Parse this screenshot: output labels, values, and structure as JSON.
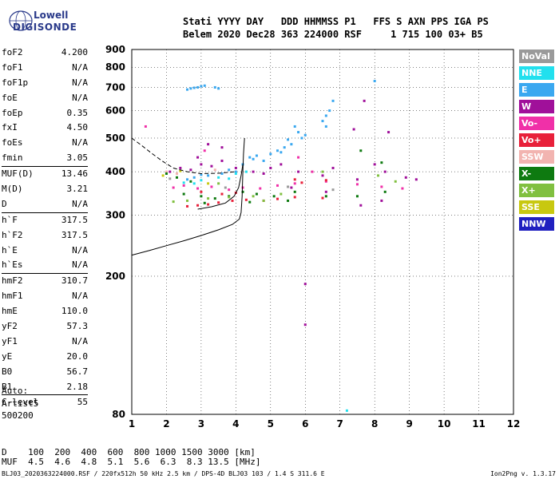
{
  "logo": {
    "line1": "Lowell",
    "line2": "DIGISONDE"
  },
  "header": {
    "line1": "Stati YYYY DAY   DDD HHMMSS P1   FFS S AXN PPS IGA PS",
    "line2": "Belem 2020 Dec28 363 224000 RSF     1 715 100 03+ B5"
  },
  "params": [
    {
      "n": "foF2",
      "v": "4.200"
    },
    {
      "n": "foF1",
      "v": "N/A"
    },
    {
      "n": "foF1p",
      "v": "N/A"
    },
    {
      "n": "foE",
      "v": "N/A"
    },
    {
      "n": "foEp",
      "v": "0.35"
    },
    {
      "n": "fxI",
      "v": "4.50"
    },
    {
      "n": "foEs",
      "v": "N/A"
    },
    {
      "n": "fmin",
      "v": "3.05",
      "sep": true
    },
    {
      "n": "MUF(D)",
      "v": "13.46"
    },
    {
      "n": "M(D)",
      "v": "3.21"
    },
    {
      "n": "D",
      "v": "N/A",
      "sep": true
    },
    {
      "n": "h`F",
      "v": "317.5"
    },
    {
      "n": "h`F2",
      "v": "317.5"
    },
    {
      "n": "h`E",
      "v": "N/A"
    },
    {
      "n": "h`Es",
      "v": "N/A",
      "sep": true
    },
    {
      "n": "hmF2",
      "v": "310.7"
    },
    {
      "n": "hmF1",
      "v": "N/A"
    },
    {
      "n": "hmE",
      "v": "110.0"
    },
    {
      "n": "yF2",
      "v": "57.3"
    },
    {
      "n": "yF1",
      "v": "N/A"
    },
    {
      "n": "yE",
      "v": "20.0"
    },
    {
      "n": "B0",
      "v": "56.7"
    },
    {
      "n": "B1",
      "v": "2.18",
      "sep": true
    },
    {
      "n": "C-level",
      "v": "55",
      "sep": true
    }
  ],
  "auto": {
    "l1": "Auto:",
    "l2": "Artist5",
    "l3": "500200"
  },
  "dmuf": {
    "d": "D    100  200  400  600  800 1000 1500 3000 [km]",
    "muf": "MUF  4.5  4.6  4.8  5.1  5.6  6.3  8.3 13.5 [MHz]"
  },
  "footer": {
    "left": "BLJ03_2020363224000.RSF / 220fx512h 50 kHz 2.5 km / DPS-4D BLJ03 103 / 1.4 S 311.6 E",
    "right": "Ion2Png v. 1.3.17"
  },
  "legend": [
    {
      "label": "NoVal",
      "color": "#9a9a9a"
    },
    {
      "label": "NNE",
      "color": "#22e0ee"
    },
    {
      "label": "E",
      "color": "#3aa8f0"
    },
    {
      "label": "W",
      "color": "#a0109a"
    },
    {
      "label": "Vo-",
      "color": "#f030a8"
    },
    {
      "label": "Vo+",
      "color": "#e8203a"
    },
    {
      "label": "SSW",
      "color": "#f2b4b0"
    },
    {
      "label": "X-",
      "color": "#0e7a10"
    },
    {
      "label": "X+",
      "color": "#80c040"
    },
    {
      "label": "SSE",
      "color": "#c8c810"
    },
    {
      "label": "NNW",
      "color": "#2020c0"
    }
  ],
  "chart_data": {
    "type": "scatter",
    "xlabel": "",
    "ylabel": "",
    "xlim": [
      1,
      12
    ],
    "ylim": [
      80,
      900
    ],
    "y_scale": "log",
    "xticks": [
      "1",
      "2",
      "3",
      "4",
      "5",
      "6",
      "7",
      "8",
      "9",
      "10",
      "11",
      "12"
    ],
    "yticks": [
      "80",
      "200",
      "300",
      "400",
      "500",
      "600",
      "700",
      "800",
      "900"
    ],
    "grid": true,
    "series": [
      {
        "name": "E",
        "color": "#3aa8f0",
        "points": [
          [
            2.6,
            690
          ],
          [
            2.7,
            695
          ],
          [
            2.8,
            698
          ],
          [
            2.9,
            700
          ],
          [
            3.0,
            705
          ],
          [
            3.1,
            708
          ],
          [
            3.4,
            700
          ],
          [
            3.5,
            695
          ],
          [
            6.5,
            560
          ],
          [
            6.6,
            580
          ],
          [
            6.7,
            600
          ],
          [
            6.8,
            640
          ],
          [
            6.6,
            540
          ],
          [
            8.0,
            730
          ],
          [
            5.8,
            520
          ],
          [
            5.9,
            500
          ],
          [
            5.2,
            460
          ],
          [
            5.4,
            470
          ],
          [
            5.6,
            480
          ],
          [
            4.4,
            440
          ],
          [
            4.8,
            430
          ],
          [
            3.2,
            390
          ],
          [
            3.6,
            395
          ],
          [
            4.0,
            400
          ],
          [
            2.6,
            380
          ],
          [
            2.8,
            385
          ],
          [
            5.0,
            450
          ],
          [
            4.2,
            420
          ],
          [
            3.8,
            405
          ],
          [
            4.6,
            445
          ],
          [
            5.7,
            540
          ],
          [
            5.5,
            495
          ],
          [
            6.0,
            510
          ],
          [
            4.5,
            435
          ],
          [
            3.0,
            392
          ],
          [
            5.3,
            455
          ]
        ]
      },
      {
        "name": "NNE",
        "color": "#22e0ee",
        "points": [
          [
            2.5,
            372
          ],
          [
            3.0,
            378
          ],
          [
            3.5,
            385
          ],
          [
            4.0,
            395
          ],
          [
            4.3,
            400
          ],
          [
            2.8,
            370
          ],
          [
            3.8,
            382
          ],
          [
            7.2,
            82
          ]
        ]
      },
      {
        "name": "W",
        "color": "#a0109a",
        "points": [
          [
            2.1,
            400
          ],
          [
            2.4,
            410
          ],
          [
            2.7,
            405
          ],
          [
            3.0,
            420
          ],
          [
            3.3,
            415
          ],
          [
            3.6,
            430
          ],
          [
            4.0,
            410
          ],
          [
            4.5,
            400
          ],
          [
            5.0,
            410
          ],
          [
            5.3,
            420
          ],
          [
            5.8,
            400
          ],
          [
            6.5,
            390
          ],
          [
            6.8,
            410
          ],
          [
            7.5,
            380
          ],
          [
            8.0,
            420
          ],
          [
            8.3,
            400
          ],
          [
            8.9,
            385
          ],
          [
            9.2,
            380
          ],
          [
            6.0,
            190
          ],
          [
            6.0,
            145
          ],
          [
            7.7,
            640
          ],
          [
            8.4,
            520
          ],
          [
            3.2,
            480
          ],
          [
            3.6,
            470
          ],
          [
            5.6,
            360
          ],
          [
            6.6,
            350
          ],
          [
            7.6,
            320
          ],
          [
            8.2,
            330
          ],
          [
            4.8,
            395
          ],
          [
            2.9,
            440
          ],
          [
            7.4,
            530
          ]
        ]
      },
      {
        "name": "Vo-",
        "color": "#f030a8",
        "points": [
          [
            2.2,
            360
          ],
          [
            2.5,
            365
          ],
          [
            2.9,
            358
          ],
          [
            3.3,
            362
          ],
          [
            3.8,
            355
          ],
          [
            4.2,
            360
          ],
          [
            4.7,
            358
          ],
          [
            5.2,
            365
          ],
          [
            5.7,
            370
          ],
          [
            6.6,
            375
          ],
          [
            7.5,
            368
          ],
          [
            8.2,
            362
          ],
          [
            8.8,
            358
          ],
          [
            3.1,
            460
          ],
          [
            5.8,
            440
          ],
          [
            6.2,
            400
          ],
          [
            1.4,
            540
          ]
        ]
      },
      {
        "name": "Vo+",
        "color": "#e8203a",
        "points": [
          [
            2.6,
            318
          ],
          [
            2.9,
            320
          ],
          [
            3.2,
            322
          ],
          [
            3.5,
            326
          ],
          [
            3.9,
            330
          ],
          [
            4.3,
            332
          ],
          [
            4.8,
            330
          ],
          [
            5.2,
            334
          ],
          [
            5.7,
            338
          ],
          [
            6.5,
            336
          ],
          [
            5.7,
            380
          ],
          [
            5.9,
            372
          ],
          [
            6.6,
            378
          ],
          [
            3.0,
            350
          ],
          [
            3.6,
            345
          ],
          [
            4.0,
            348
          ]
        ]
      },
      {
        "name": "SSW",
        "color": "#f2b4b0",
        "points": [
          [
            2.0,
            400
          ],
          [
            2.3,
            395
          ],
          [
            3.4,
            405
          ]
        ]
      },
      {
        "name": "X-",
        "color": "#0e7a10",
        "points": [
          [
            2.0,
            395
          ],
          [
            2.3,
            385
          ],
          [
            2.7,
            375
          ],
          [
            3.0,
            340
          ],
          [
            3.4,
            335
          ],
          [
            3.8,
            340
          ],
          [
            4.2,
            350
          ],
          [
            4.6,
            345
          ],
          [
            5.1,
            340
          ],
          [
            5.7,
            350
          ],
          [
            6.6,
            340
          ],
          [
            7.5,
            340
          ],
          [
            8.3,
            350
          ],
          [
            3.1,
            325
          ],
          [
            4.4,
            327
          ],
          [
            5.5,
            330
          ],
          [
            2.5,
            345
          ],
          [
            7.6,
            460
          ],
          [
            8.2,
            425
          ]
        ]
      },
      {
        "name": "X+",
        "color": "#80c040",
        "points": [
          [
            2.2,
            328
          ],
          [
            2.6,
            330
          ],
          [
            3.2,
            335
          ],
          [
            3.8,
            338
          ],
          [
            4.5,
            340
          ],
          [
            5.3,
            345
          ],
          [
            6.5,
            400
          ],
          [
            8.1,
            390
          ],
          [
            3.5,
            370
          ],
          [
            4.8,
            330
          ],
          [
            8.6,
            375
          ]
        ]
      },
      {
        "name": "SSE",
        "color": "#c8c810",
        "points": [
          [
            1.9,
            390
          ],
          [
            2.4,
            402
          ],
          [
            3.2,
            370
          ]
        ]
      },
      {
        "name": "NoVal",
        "color": "#9a9a9a",
        "points": [
          [
            2.1,
            382
          ],
          [
            3.7,
            360
          ],
          [
            5.5,
            362
          ],
          [
            6.8,
            355
          ]
        ]
      }
    ],
    "curves": {
      "solid_lower": [
        [
          1,
          230
        ],
        [
          1.5,
          237
        ],
        [
          2.0,
          245
        ],
        [
          2.5,
          253
        ],
        [
          3.0,
          262
        ],
        [
          3.5,
          272
        ],
        [
          3.9,
          282
        ],
        [
          4.1,
          292
        ],
        [
          4.15,
          305
        ],
        [
          4.18,
          340
        ],
        [
          4.2,
          400
        ],
        [
          4.22,
          450
        ],
        [
          4.25,
          500
        ]
      ],
      "solid_upper": [
        [
          2.9,
          312
        ],
        [
          3.3,
          317
        ],
        [
          3.7,
          325
        ],
        [
          3.95,
          340
        ],
        [
          4.08,
          360
        ],
        [
          4.15,
          390
        ],
        [
          4.2,
          420
        ]
      ],
      "dashed": [
        [
          1,
          500
        ],
        [
          1.3,
          475
        ],
        [
          1.6,
          450
        ],
        [
          1.9,
          428
        ],
        [
          2.2,
          410
        ],
        [
          2.6,
          400
        ],
        [
          3.0,
          395
        ],
        [
          3.5,
          396
        ],
        [
          4.0,
          400
        ]
      ]
    }
  }
}
